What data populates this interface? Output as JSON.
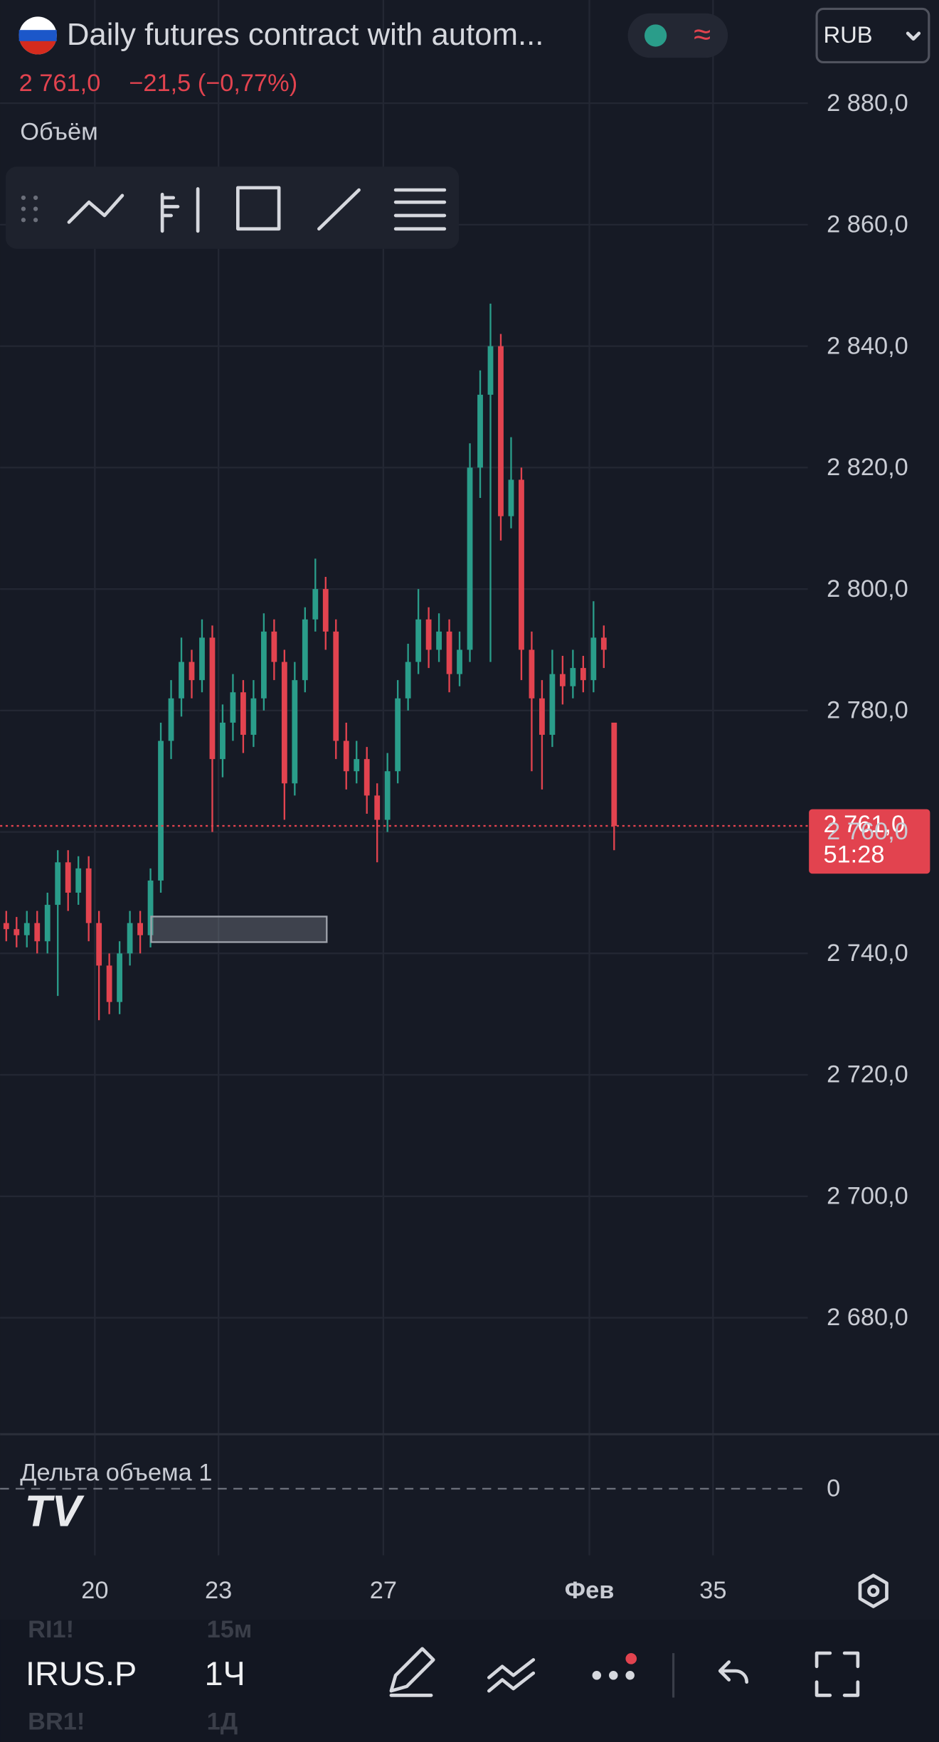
{
  "header": {
    "title": "Daily futures contract with autom...",
    "change": "−21,5 (−0,77%)",
    "indicator": "Объём",
    "currency": "RUB",
    "countdown": "51:28"
  },
  "chart_data": {
    "type": "candlestick",
    "last_price": {
      "value": 2761,
      "label": "2 761,0"
    },
    "up_color": "#2a9d8a",
    "down_color": "#e2434f",
    "ylim": [
      2661,
      2897
    ],
    "yticks": [
      {
        "value": 2680,
        "label": "2 680,0"
      },
      {
        "value": 2700,
        "label": "2 700,0"
      },
      {
        "value": 2720,
        "label": "2 720,0"
      },
      {
        "value": 2740,
        "label": "2 740,0"
      },
      {
        "value": 2760,
        "label": "2 760,0"
      },
      {
        "value": 2780,
        "label": "2 780,0"
      },
      {
        "value": 2800,
        "label": "2 800,0"
      },
      {
        "value": 2820,
        "label": "2 820,0"
      },
      {
        "value": 2840,
        "label": "2 840,0"
      },
      {
        "value": 2860,
        "label": "2 860,0"
      },
      {
        "value": 2880,
        "label": "2 880,0"
      }
    ],
    "xlim": [
      17.7,
      37.3
    ],
    "xticks": [
      20,
      23,
      27,
      {
        "value": 32,
        "label": "Фев"
      },
      35
    ],
    "grid": true,
    "candles": {
      "x": [
        17.85,
        18.1,
        18.35,
        18.6,
        18.85,
        19.1,
        19.35,
        19.6,
        19.85,
        20.1,
        20.35,
        20.6,
        20.85,
        21.1,
        21.35,
        21.6,
        21.85,
        22.1,
        22.35,
        22.6,
        22.85,
        23.1,
        23.35,
        23.6,
        23.85,
        24.1,
        24.35,
        24.6,
        24.85,
        25.1,
        25.35,
        25.6,
        25.85,
        26.1,
        26.35,
        26.6,
        26.85,
        27.1,
        27.35,
        27.6,
        27.85,
        28.1,
        28.35,
        28.6,
        28.85,
        29.1,
        29.35,
        29.6,
        29.85,
        30.1,
        30.35,
        30.6,
        30.85,
        31.1,
        31.35,
        31.6,
        31.85,
        32.1,
        32.35,
        32.6
      ],
      "open": [
        2745,
        2744,
        2743,
        2745,
        2742,
        2748,
        2755,
        2750,
        2754,
        2745,
        2738,
        2732,
        2740,
        2745,
        2743,
        2752,
        2775,
        2782,
        2788,
        2785,
        2792,
        2772,
        2778,
        2783,
        2776,
        2782,
        2793,
        2788,
        2768,
        2785,
        2795,
        2800,
        2793,
        2775,
        2770,
        2772,
        2766,
        2762,
        2770,
        2782,
        2788,
        2795,
        2790,
        2793,
        2786,
        2790,
        2820,
        2832,
        2840,
        2812,
        2818,
        2790,
        2782,
        2776,
        2786,
        2784,
        2787,
        2785,
        2792,
        2778
      ],
      "high": [
        2747,
        2746,
        2747,
        2747,
        2750,
        2757,
        2757,
        2756,
        2756,
        2747,
        2740,
        2742,
        2747,
        2747,
        2754,
        2778,
        2785,
        2792,
        2790,
        2795,
        2794,
        2781,
        2786,
        2785,
        2785,
        2796,
        2795,
        2790,
        2788,
        2797,
        2805,
        2802,
        2795,
        2778,
        2775,
        2774,
        2768,
        2773,
        2785,
        2791,
        2800,
        2797,
        2796,
        2795,
        2793,
        2824,
        2836,
        2847,
        2842,
        2825,
        2820,
        2793,
        2785,
        2790,
        2789,
        2790,
        2789,
        2798,
        2794,
        2778
      ],
      "low": [
        2742,
        2741,
        2741,
        2740,
        2740,
        2733,
        2747,
        2748,
        2742,
        2729,
        2730,
        2730,
        2738,
        2740,
        2741,
        2750,
        2772,
        2779,
        2782,
        2783,
        2760,
        2769,
        2775,
        2773,
        2774,
        2780,
        2785,
        2762,
        2766,
        2783,
        2793,
        2790,
        2772,
        2767,
        2768,
        2763,
        2755,
        2760,
        2768,
        2780,
        2786,
        2787,
        2788,
        2783,
        2784,
        2788,
        2815,
        2788,
        2808,
        2810,
        2785,
        2770,
        2767,
        2774,
        2781,
        2782,
        2783,
        2783,
        2787,
        2757
      ],
      "close": [
        2744,
        2743,
        2745,
        2742,
        2748,
        2755,
        2750,
        2754,
        2745,
        2738,
        2732,
        2740,
        2745,
        2743,
        2752,
        2775,
        2782,
        2788,
        2785,
        2792,
        2772,
        2778,
        2783,
        2776,
        2782,
        2793,
        2788,
        2768,
        2785,
        2795,
        2800,
        2793,
        2775,
        2770,
        2772,
        2766,
        2762,
        2770,
        2782,
        2788,
        2795,
        2790,
        2793,
        2786,
        2790,
        2820,
        2832,
        2840,
        2812,
        2818,
        2790,
        2782,
        2776,
        2786,
        2784,
        2787,
        2785,
        2792,
        2790,
        2761
      ]
    },
    "delta_pane": {
      "title": "Дельта объема 1",
      "yticks": [
        0
      ]
    }
  },
  "footer": {
    "symbol": "IRUS.P",
    "interval": "1Ч",
    "ghost": [
      "RI1!",
      "15м",
      "BR1!",
      "1Д"
    ]
  }
}
